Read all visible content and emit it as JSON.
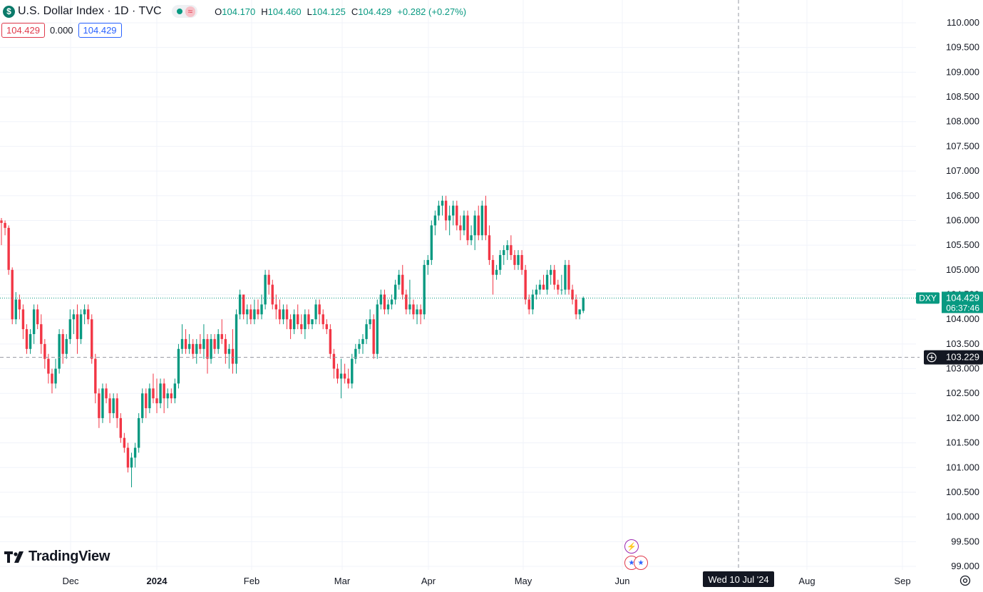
{
  "header": {
    "symbol_icon": "$",
    "title": "U.S. Dollar Index · 1D · TVC",
    "ohlc": {
      "o_label": "O",
      "o_value": "104.170",
      "h_label": "H",
      "h_value": "104.460",
      "l_label": "L",
      "l_value": "104.125",
      "c_label": "C",
      "c_value": "104.429",
      "change": "+0.282 (+0.27%)"
    },
    "pill_icon": "≈",
    "values": {
      "bid": "104.429",
      "spread": "0.000",
      "ask": "104.429"
    }
  },
  "price_axis": {
    "ticks": [
      "110.000",
      "109.500",
      "109.000",
      "108.500",
      "108.000",
      "107.500",
      "107.000",
      "106.500",
      "106.000",
      "105.500",
      "105.000",
      "104.500",
      "104.000",
      "103.500",
      "103.000",
      "102.500",
      "102.000",
      "101.500",
      "101.000",
      "100.500",
      "100.000",
      "99.500",
      "99.000"
    ],
    "last_price_symbol": "DXY",
    "last_price": "104.429",
    "countdown": "06:37:46",
    "crosshair_price": "103.229"
  },
  "time_axis": {
    "labels": [
      "Dec",
      "2024",
      "Feb",
      "Mar",
      "Apr",
      "May",
      "Jun",
      "Aug",
      "Sep"
    ],
    "crosshair_date": "Wed 10 Jul '24"
  },
  "logo_text": "TradingView",
  "colors": {
    "up": "#089981",
    "down": "#f23645",
    "crosshair": "#9598a1",
    "grid": "#f0f3fa"
  },
  "icons": [
    "dollar-icon",
    "tradingview-logo-icon",
    "bolt-icon",
    "us-flag-icon",
    "settings-icon",
    "crosshair-plus-icon"
  ],
  "chart_data": {
    "type": "candlestick",
    "title": "U.S. Dollar Index · 1D · TVC",
    "ylim": [
      99.0,
      110.0
    ],
    "last_price": 104.429,
    "crosshair_price": 103.229,
    "candles": [
      [
        106.0,
        106.05,
        105.5,
        105.95
      ],
      [
        105.95,
        106.0,
        105.7,
        105.85
      ],
      [
        105.85,
        105.9,
        104.9,
        105.0
      ],
      [
        105.0,
        105.05,
        103.9,
        104.0
      ],
      [
        104.0,
        104.55,
        103.9,
        104.4
      ],
      [
        104.4,
        104.5,
        104.0,
        104.2
      ],
      [
        104.2,
        104.3,
        103.6,
        103.8
      ],
      [
        103.8,
        103.9,
        103.3,
        103.4
      ],
      [
        103.4,
        103.8,
        103.3,
        103.7
      ],
      [
        103.7,
        104.3,
        103.5,
        104.2
      ],
      [
        104.2,
        104.3,
        103.8,
        103.9
      ],
      [
        103.9,
        104.1,
        103.3,
        103.5
      ],
      [
        103.5,
        103.6,
        103.0,
        103.2
      ],
      [
        103.2,
        103.3,
        102.7,
        102.9
      ],
      [
        102.9,
        103.0,
        102.5,
        102.7
      ],
      [
        102.7,
        103.2,
        102.6,
        103.0
      ],
      [
        103.0,
        103.8,
        102.9,
        103.7
      ],
      [
        103.7,
        103.8,
        103.1,
        103.3
      ],
      [
        103.3,
        103.7,
        103.2,
        103.6
      ],
      [
        103.6,
        104.2,
        103.5,
        104.0
      ],
      [
        104.0,
        104.2,
        103.7,
        104.1
      ],
      [
        104.1,
        104.3,
        103.3,
        103.6
      ],
      [
        103.6,
        104.2,
        103.5,
        104.1
      ],
      [
        104.1,
        104.3,
        103.9,
        104.2
      ],
      [
        104.2,
        104.3,
        103.9,
        104.0
      ],
      [
        104.0,
        104.1,
        103.1,
        103.2
      ],
      [
        103.2,
        103.3,
        102.3,
        102.5
      ],
      [
        102.5,
        102.6,
        101.8,
        102.0
      ],
      [
        102.0,
        102.7,
        101.9,
        102.6
      ],
      [
        102.6,
        102.7,
        102.3,
        102.4
      ],
      [
        102.4,
        102.5,
        101.9,
        102.1
      ],
      [
        102.1,
        102.5,
        102.0,
        102.4
      ],
      [
        102.4,
        102.5,
        101.8,
        102.0
      ],
      [
        102.0,
        102.1,
        101.5,
        101.6
      ],
      [
        101.6,
        101.7,
        101.3,
        101.4
      ],
      [
        101.4,
        101.5,
        100.9,
        101.0
      ],
      [
        101.0,
        101.3,
        100.6,
        101.2
      ],
      [
        101.2,
        101.5,
        101.0,
        101.4
      ],
      [
        101.4,
        102.1,
        101.3,
        102.0
      ],
      [
        102.0,
        102.6,
        101.9,
        102.5
      ],
      [
        102.5,
        102.6,
        102.0,
        102.2
      ],
      [
        102.2,
        102.7,
        102.1,
        102.6
      ],
      [
        102.6,
        102.9,
        102.3,
        102.4
      ],
      [
        102.4,
        102.8,
        102.1,
        102.3
      ],
      [
        102.3,
        102.8,
        102.2,
        102.7
      ],
      [
        102.7,
        102.8,
        102.1,
        102.4
      ],
      [
        102.4,
        102.6,
        102.2,
        102.5
      ],
      [
        102.5,
        102.6,
        102.3,
        102.4
      ],
      [
        102.4,
        102.8,
        102.3,
        102.7
      ],
      [
        102.7,
        103.5,
        102.6,
        103.4
      ],
      [
        103.4,
        103.9,
        103.3,
        103.6
      ],
      [
        103.6,
        103.8,
        103.3,
        103.4
      ],
      [
        103.4,
        103.7,
        103.3,
        103.5
      ],
      [
        103.5,
        103.6,
        103.2,
        103.3
      ],
      [
        103.3,
        103.6,
        103.1,
        103.5
      ],
      [
        103.5,
        103.7,
        103.3,
        103.4
      ],
      [
        103.4,
        103.9,
        103.2,
        103.6
      ],
      [
        103.6,
        103.7,
        102.9,
        103.2
      ],
      [
        103.2,
        103.7,
        103.1,
        103.6
      ],
      [
        103.6,
        103.7,
        103.3,
        103.4
      ],
      [
        103.4,
        103.8,
        103.3,
        103.7
      ],
      [
        103.7,
        104.0,
        103.5,
        103.6
      ],
      [
        103.6,
        103.7,
        103.1,
        103.3
      ],
      [
        103.3,
        103.5,
        103.0,
        103.4
      ],
      [
        103.4,
        103.8,
        102.9,
        103.1
      ],
      [
        103.1,
        104.2,
        102.9,
        104.1
      ],
      [
        104.1,
        104.6,
        104.0,
        104.5
      ],
      [
        104.5,
        104.5,
        104.0,
        104.1
      ],
      [
        104.1,
        104.3,
        103.9,
        104.2
      ],
      [
        104.2,
        104.3,
        103.9,
        104.0
      ],
      [
        104.0,
        104.4,
        103.9,
        104.2
      ],
      [
        104.2,
        104.4,
        104.0,
        104.1
      ],
      [
        104.1,
        104.5,
        104.0,
        104.3
      ],
      [
        104.3,
        105.0,
        104.2,
        104.9
      ],
      [
        104.9,
        105.0,
        104.5,
        104.7
      ],
      [
        104.7,
        104.8,
        104.2,
        104.3
      ],
      [
        104.3,
        104.5,
        104.0,
        104.2
      ],
      [
        104.2,
        104.4,
        103.9,
        104.0
      ],
      [
        104.0,
        104.3,
        103.9,
        104.2
      ],
      [
        104.2,
        104.3,
        103.8,
        104.0
      ],
      [
        104.0,
        104.1,
        103.6,
        103.8
      ],
      [
        103.8,
        104.2,
        103.7,
        104.1
      ],
      [
        104.1,
        104.3,
        103.8,
        103.9
      ],
      [
        103.9,
        104.1,
        103.7,
        103.8
      ],
      [
        103.8,
        104.2,
        103.6,
        104.1
      ],
      [
        104.1,
        104.2,
        103.8,
        103.9
      ],
      [
        103.9,
        104.0,
        103.8,
        104.0
      ],
      [
        104.0,
        104.4,
        103.9,
        104.3
      ],
      [
        104.3,
        104.4,
        103.9,
        104.1
      ],
      [
        104.1,
        104.2,
        103.8,
        103.9
      ],
      [
        103.9,
        104.0,
        103.7,
        103.8
      ],
      [
        103.8,
        103.9,
        103.2,
        103.3
      ],
      [
        103.3,
        103.4,
        102.8,
        103.0
      ],
      [
        103.0,
        103.1,
        102.7,
        102.8
      ],
      [
        102.8,
        103.2,
        102.4,
        102.9
      ],
      [
        102.9,
        103.1,
        102.7,
        102.8
      ],
      [
        102.8,
        103.0,
        102.6,
        102.7
      ],
      [
        102.7,
        103.3,
        102.6,
        103.2
      ],
      [
        103.2,
        103.5,
        103.1,
        103.4
      ],
      [
        103.4,
        103.6,
        103.3,
        103.5
      ],
      [
        103.5,
        103.7,
        103.3,
        103.6
      ],
      [
        103.6,
        104.0,
        103.5,
        103.9
      ],
      [
        103.9,
        104.2,
        103.8,
        104.0
      ],
      [
        104.0,
        104.1,
        103.2,
        103.3
      ],
      [
        103.3,
        104.4,
        103.2,
        104.3
      ],
      [
        104.3,
        104.6,
        104.2,
        104.5
      ],
      [
        104.5,
        104.6,
        104.1,
        104.2
      ],
      [
        104.2,
        104.4,
        104.1,
        104.3
      ],
      [
        104.3,
        104.5,
        104.2,
        104.4
      ],
      [
        104.4,
        104.8,
        104.3,
        104.7
      ],
      [
        104.7,
        105.0,
        104.6,
        104.9
      ],
      [
        104.9,
        105.1,
        104.4,
        104.5
      ],
      [
        104.5,
        104.6,
        104.1,
        104.2
      ],
      [
        104.2,
        104.8,
        104.1,
        104.3
      ],
      [
        104.3,
        104.4,
        104.0,
        104.1
      ],
      [
        104.1,
        104.3,
        103.9,
        104.2
      ],
      [
        104.2,
        104.3,
        103.9,
        104.1
      ],
      [
        104.1,
        105.2,
        104.0,
        105.1
      ],
      [
        105.1,
        105.3,
        104.9,
        105.2
      ],
      [
        105.2,
        106.0,
        105.1,
        105.9
      ],
      [
        105.9,
        106.2,
        105.7,
        106.1
      ],
      [
        106.1,
        106.4,
        106.0,
        106.3
      ],
      [
        106.3,
        106.5,
        106.1,
        106.4
      ],
      [
        106.4,
        106.5,
        105.8,
        106.0
      ],
      [
        106.0,
        106.3,
        105.7,
        106.1
      ],
      [
        106.1,
        106.4,
        105.9,
        106.3
      ],
      [
        106.3,
        106.4,
        105.8,
        105.9
      ],
      [
        105.9,
        106.1,
        105.6,
        105.8
      ],
      [
        105.8,
        106.2,
        105.7,
        106.1
      ],
      [
        106.1,
        106.2,
        105.5,
        105.6
      ],
      [
        105.6,
        105.9,
        105.5,
        105.7
      ],
      [
        105.7,
        106.2,
        105.4,
        106.1
      ],
      [
        106.1,
        106.3,
        105.6,
        105.7
      ],
      [
        105.7,
        106.4,
        105.6,
        106.3
      ],
      [
        106.3,
        106.5,
        105.6,
        105.7
      ],
      [
        105.7,
        105.9,
        105.1,
        105.2
      ],
      [
        105.2,
        105.3,
        104.5,
        104.9
      ],
      [
        104.9,
        105.1,
        104.8,
        105.0
      ],
      [
        105.0,
        105.4,
        104.9,
        105.3
      ],
      [
        105.3,
        105.5,
        105.1,
        105.4
      ],
      [
        105.4,
        105.6,
        105.2,
        105.5
      ],
      [
        105.5,
        105.7,
        105.2,
        105.3
      ],
      [
        105.3,
        105.4,
        105.0,
        105.1
      ],
      [
        105.1,
        105.4,
        105.0,
        105.3
      ],
      [
        105.3,
        105.4,
        104.9,
        105.0
      ],
      [
        105.0,
        105.1,
        104.3,
        104.4
      ],
      [
        104.4,
        104.5,
        104.1,
        104.2
      ],
      [
        104.2,
        104.6,
        104.1,
        104.5
      ],
      [
        104.5,
        104.7,
        104.4,
        104.6
      ],
      [
        104.6,
        104.8,
        104.5,
        104.7
      ],
      [
        104.7,
        104.9,
        104.6,
        104.6
      ],
      [
        104.6,
        105.0,
        104.5,
        104.9
      ],
      [
        104.9,
        105.1,
        104.7,
        105.0
      ],
      [
        105.0,
        105.1,
        104.6,
        104.7
      ],
      [
        104.7,
        104.8,
        104.5,
        104.6
      ],
      [
        104.6,
        104.9,
        104.5,
        104.6
      ],
      [
        104.6,
        105.2,
        104.5,
        105.1
      ],
      [
        105.1,
        105.2,
        104.5,
        104.6
      ],
      [
        104.6,
        104.7,
        104.3,
        104.4
      ],
      [
        104.4,
        104.5,
        104.0,
        104.1
      ],
      [
        104.1,
        104.2,
        104.0,
        104.2
      ],
      [
        104.17,
        104.46,
        104.125,
        104.429
      ]
    ]
  }
}
